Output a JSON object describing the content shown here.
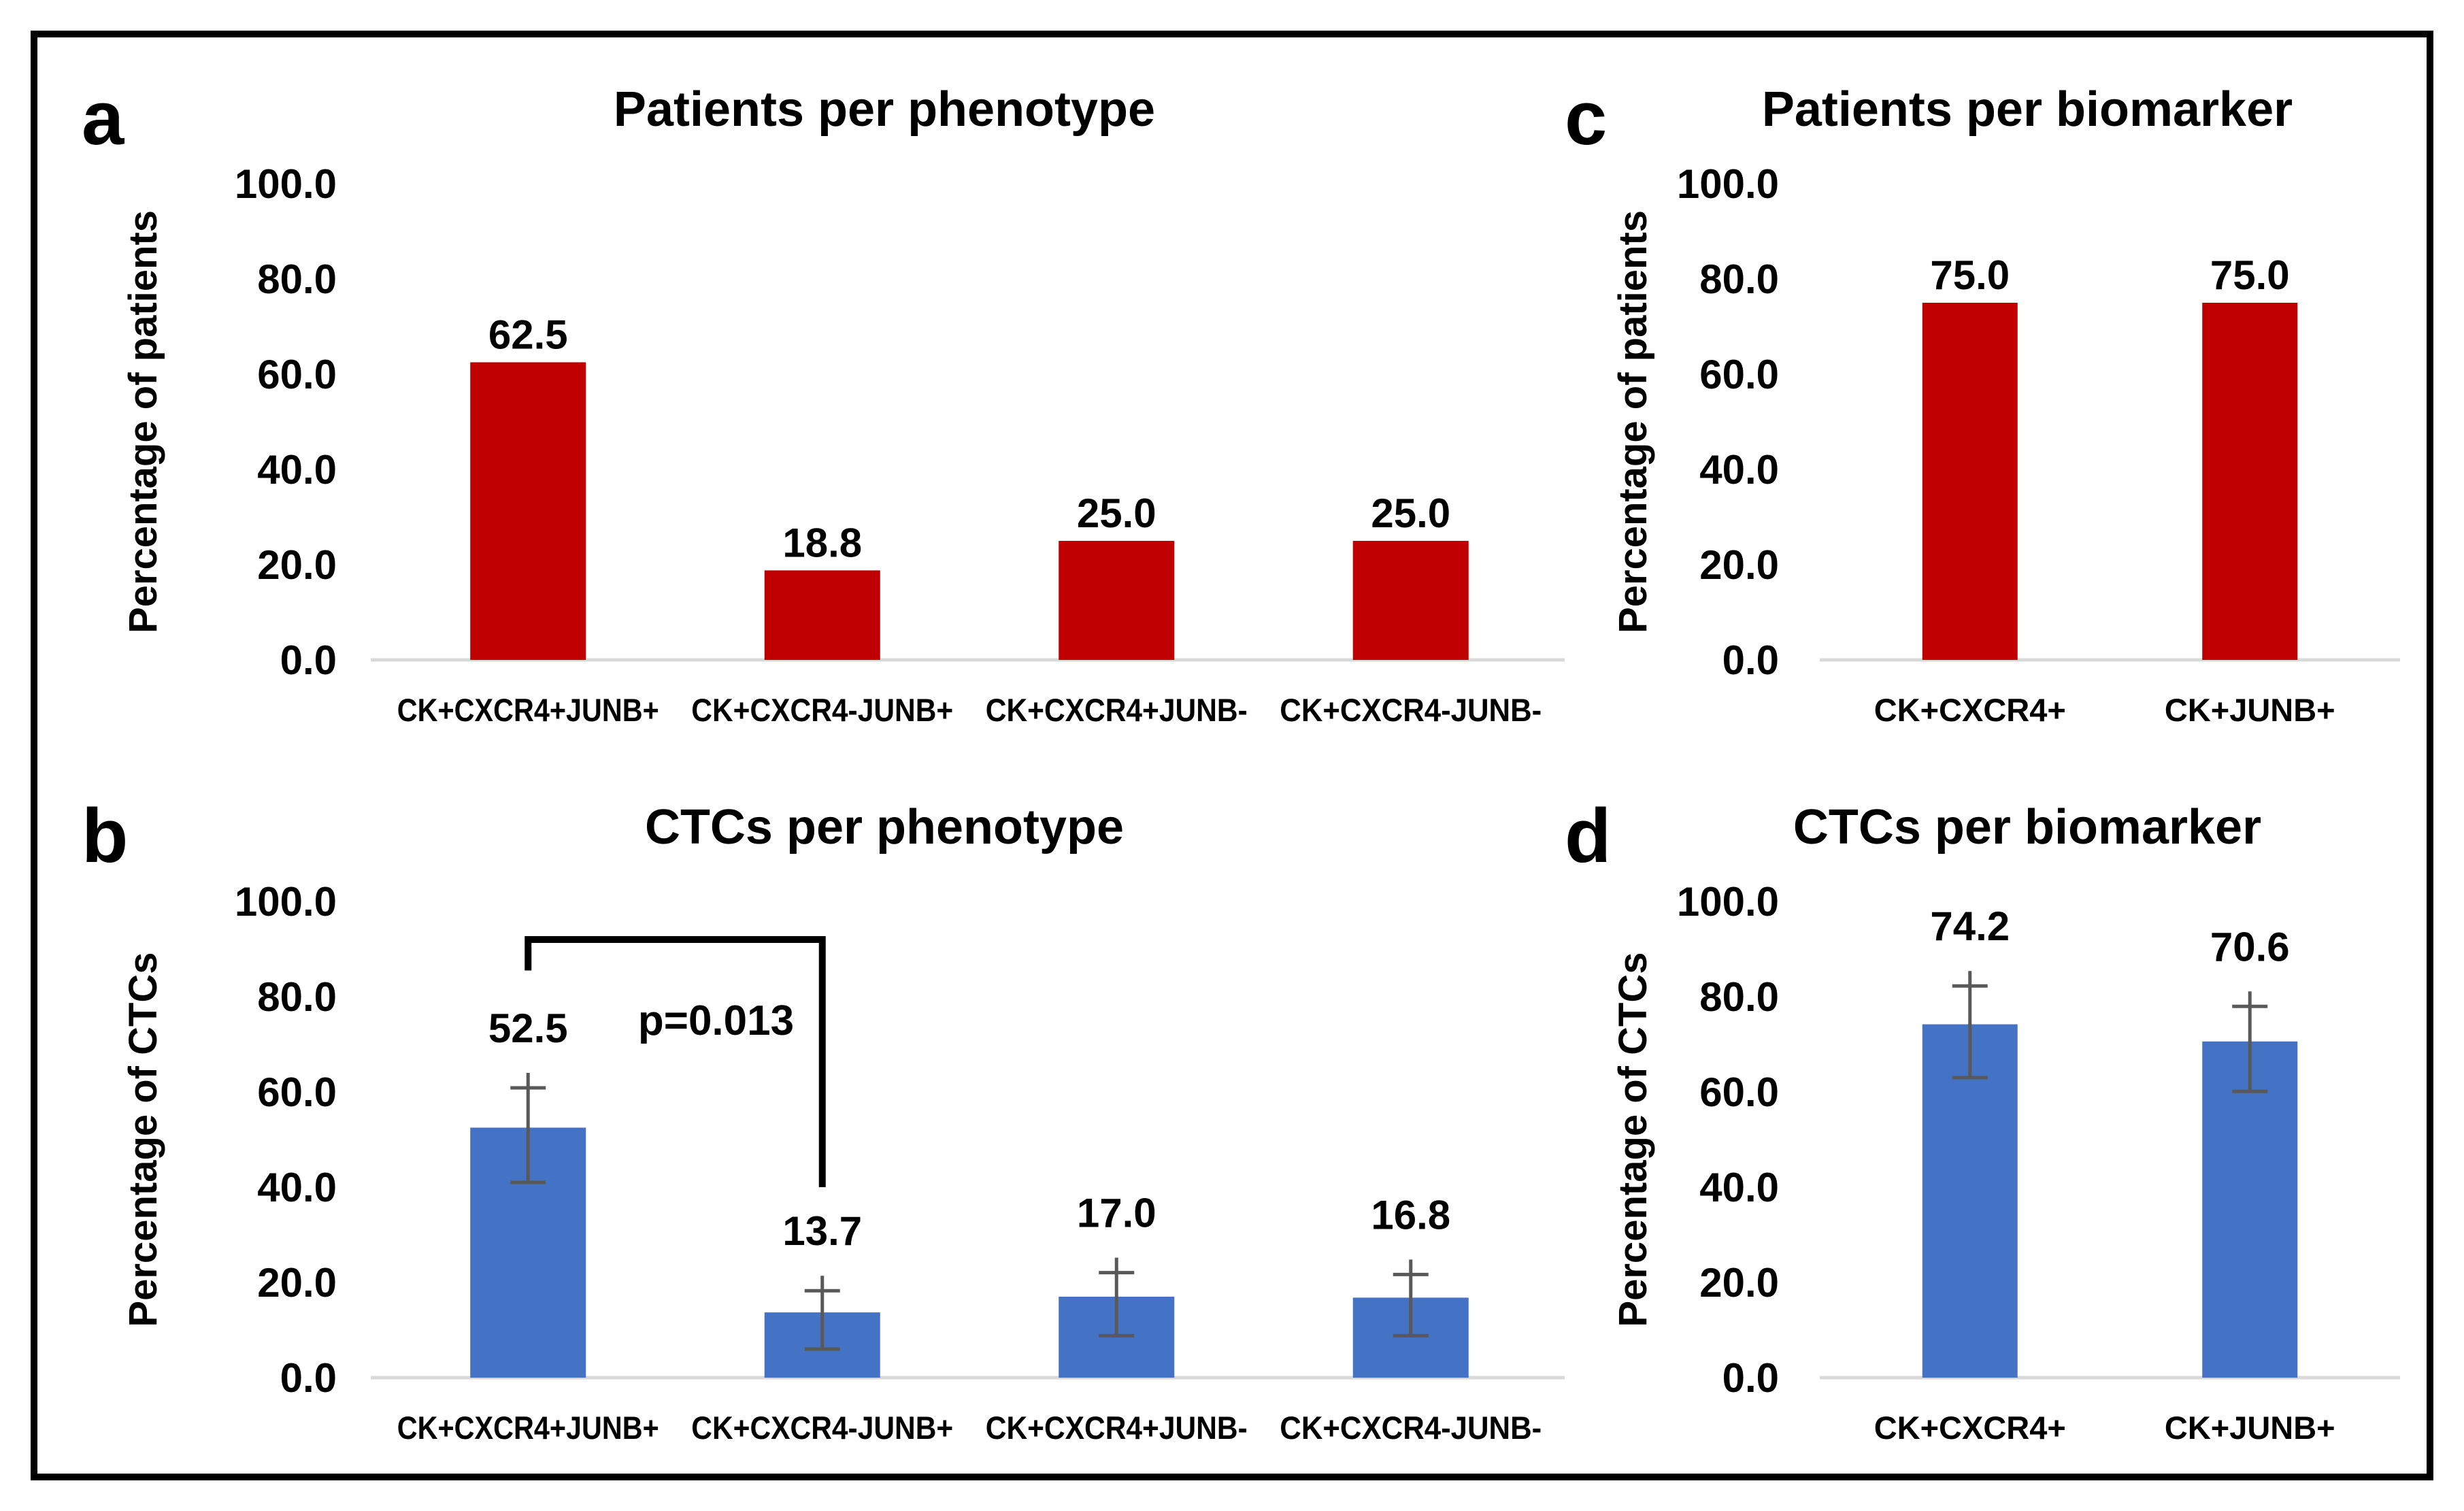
{
  "figure": {
    "border_color": "#000000",
    "background_color": "#ffffff",
    "panels": [
      {
        "letter": "a",
        "title": "Patients per phenotype"
      },
      {
        "letter": "b",
        "title": "CTCs per phenotype"
      },
      {
        "letter": "c",
        "title": "Patients per biomarker"
      },
      {
        "letter": "d",
        "title": "CTCs per biomarker"
      }
    ]
  },
  "chart_data": [
    {
      "id": "a",
      "type": "bar",
      "title": "Patients per phenotype",
      "xlabel": "",
      "ylabel": "Percentage of patients",
      "ylim": [
        0,
        100
      ],
      "yticks": [
        0,
        20,
        40,
        60,
        80,
        100
      ],
      "tick_decimals": 1,
      "grid": false,
      "legend": false,
      "bar_color": "#C00000",
      "categories": [
        "CK+CXCR4+JUNB+",
        "CK+CXCR4-JUNB+",
        "CK+CXCR4+JUNB-",
        "CK+CXCR4-JUNB-"
      ],
      "values": [
        62.5,
        18.8,
        25.0,
        25.0
      ],
      "value_labels": [
        "62.5",
        "18.8",
        "25.0",
        "25.0"
      ]
    },
    {
      "id": "b",
      "type": "bar",
      "title": "CTCs per phenotype",
      "xlabel": "",
      "ylabel": "Percentage of CTCs",
      "ylim": [
        0,
        100
      ],
      "yticks": [
        0,
        20,
        40,
        60,
        80,
        100
      ],
      "tick_decimals": 1,
      "grid": false,
      "legend": false,
      "bar_color": "#4472C4",
      "error_color": "#595959",
      "categories": [
        "CK+CXCR4+JUNB+",
        "CK+CXCR4-JUNB+",
        "CK+CXCR4+JUNB-",
        "CK+CXCR4-JUNB-"
      ],
      "values": [
        52.5,
        13.7,
        17.0,
        16.8
      ],
      "value_labels": [
        "52.5",
        "13.7",
        "17.0",
        "16.8"
      ],
      "errors": [
        11.5,
        7.7,
        8.2,
        8.0
      ],
      "annotation": {
        "text": "p=0.013",
        "from_index": 0,
        "to_index": 1
      }
    },
    {
      "id": "c",
      "type": "bar",
      "title": "Patients per biomarker",
      "xlabel": "",
      "ylabel": "Percentage of patients",
      "ylim": [
        0,
        100
      ],
      "yticks": [
        0,
        20,
        40,
        60,
        80,
        100
      ],
      "tick_decimals": 1,
      "grid": false,
      "legend": false,
      "bar_color": "#C00000",
      "categories": [
        "CK+CXCR4+",
        "CK+JUNB+"
      ],
      "values": [
        75.0,
        75.0
      ],
      "value_labels": [
        "75.0",
        "75.0"
      ]
    },
    {
      "id": "d",
      "type": "bar",
      "title": "CTCs per biomarker",
      "xlabel": "",
      "ylabel": "Percentage of CTCs",
      "ylim": [
        0,
        100
      ],
      "yticks": [
        0,
        20,
        40,
        60,
        80,
        100
      ],
      "tick_decimals": 1,
      "grid": false,
      "legend": false,
      "bar_color": "#4472C4",
      "error_color": "#595959",
      "categories": [
        "CK+CXCR4+",
        "CK+JUNB+"
      ],
      "values": [
        74.2,
        70.6
      ],
      "value_labels": [
        "74.2",
        "70.6"
      ],
      "errors": [
        11.2,
        10.5
      ]
    }
  ],
  "style": {
    "axis_line_color": "#D9D9D9",
    "error_bar_color": "#595959",
    "red": "#C00000",
    "blue": "#4472C4"
  }
}
